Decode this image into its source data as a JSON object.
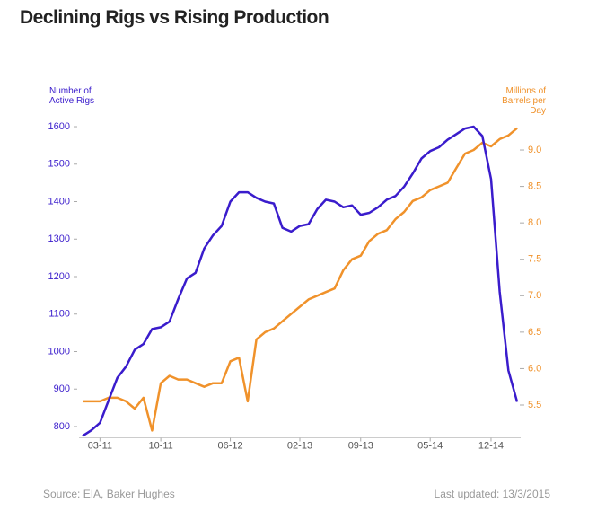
{
  "chart_data": {
    "type": "line",
    "title": "Declining Rigs vs Rising Production",
    "y_label": "Number of Active Rigs",
    "y2_label": "Millions of Barrels per Day",
    "source": "Source: EIA, Baker Hughes",
    "updated": "Last updated: 13/3/2015",
    "categories": [
      null,
      null,
      "03-11",
      null,
      null,
      null,
      null,
      null,
      null,
      "10-11",
      null,
      null,
      null,
      null,
      null,
      null,
      null,
      "06-12",
      null,
      null,
      null,
      null,
      null,
      null,
      null,
      "02-13",
      null,
      null,
      null,
      null,
      null,
      null,
      "09-13",
      null,
      null,
      null,
      null,
      null,
      null,
      null,
      "05-14",
      null,
      null,
      null,
      null,
      null,
      null,
      "12-14",
      null,
      null,
      null
    ],
    "ylim": [
      770,
      1630
    ],
    "yticks": [
      800,
      900,
      1000,
      1100,
      1200,
      1300,
      1400,
      1500,
      1600
    ],
    "y2lim": [
      5.05,
      9.475
    ],
    "y2ticks": [
      5.5,
      {
        "value": 6,
        "label": "6.0"
      },
      6.5,
      {
        "value": 7,
        "label": "7.0"
      },
      7.5,
      {
        "value": 8,
        "label": "8.0"
      },
      8.5,
      {
        "value": 9,
        "label": "9.0"
      }
    ],
    "series": [
      {
        "color": "#3a1ccc",
        "values": [
          775,
          790,
          810,
          870,
          930,
          960,
          1005,
          1020,
          1060,
          1065,
          1080,
          1140,
          1195,
          1210,
          1275,
          1310,
          1335,
          1400,
          1425,
          1425,
          1410,
          1400,
          1395,
          1330,
          1320,
          1335,
          1340,
          1380,
          1405,
          1400,
          1385,
          1390,
          1365,
          1370,
          1385,
          1405,
          1415,
          1440,
          1475,
          1515,
          1535,
          1545,
          1565,
          1580,
          1595,
          1600,
          1575,
          1460,
          1160,
          950,
          866
        ]
      },
      {
        "color": "#f0922b",
        "axis": "y2",
        "values": [
          5.55,
          5.55,
          5.55,
          5.6,
          5.6,
          5.55,
          5.45,
          5.6,
          5.15,
          5.8,
          5.9,
          5.85,
          5.85,
          5.8,
          5.75,
          5.8,
          5.8,
          6.1,
          6.15,
          5.55,
          6.4,
          6.5,
          6.55,
          6.65,
          6.75,
          6.85,
          6.95,
          7.0,
          7.05,
          7.1,
          7.35,
          7.5,
          7.55,
          7.75,
          7.85,
          7.9,
          8.05,
          8.15,
          8.3,
          8.35,
          8.45,
          8.5,
          8.55,
          8.75,
          8.95,
          9.0,
          9.1,
          9.05,
          9.15,
          9.2,
          9.3
        ]
      }
    ]
  }
}
